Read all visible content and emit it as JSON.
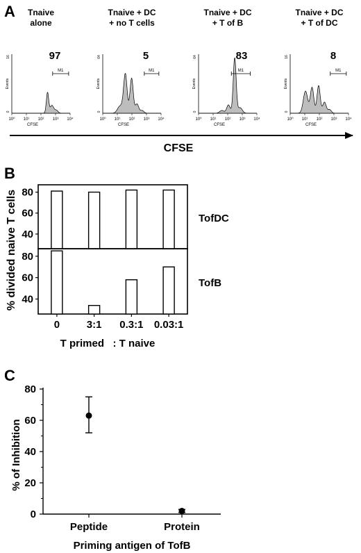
{
  "panel_labels": {
    "a": "A",
    "b": "B",
    "c": "C"
  },
  "chart_data": [
    {
      "panel": "A",
      "type": "area",
      "xaxis_label": "CFSE",
      "ylabel_small": "Events",
      "xlabel_small": "CFSE",
      "x_ticks": [
        "10⁰",
        "10¹",
        "10²",
        "10³",
        "10⁴"
      ],
      "xlim_log10": [
        0,
        4
      ],
      "gate_label": "M1",
      "fill_color": "#bdbdbd",
      "histograms": [
        {
          "title_lines": [
            "Tnaive",
            "alone"
          ],
          "percent": "97",
          "ymax": "16",
          "ymax_val": 16,
          "gate_log10": [
            2.8,
            3.9
          ],
          "peaks": [
            {
              "x": 2.45,
              "h": 5.6,
              "w": 0.08
            },
            {
              "x": 2.75,
              "h": 2.1,
              "w": 0.12
            },
            {
              "x": 3.05,
              "h": 0.8,
              "w": 0.12
            }
          ]
        },
        {
          "title_lines": [
            "Tnaive + DC",
            "+  no T cells"
          ],
          "percent": "5",
          "ymax": "64",
          "ymax_val": 64,
          "gate_log10": [
            2.85,
            3.85
          ],
          "peaks": [
            {
              "x": 1.2,
              "h": 8,
              "w": 0.18
            },
            {
              "x": 1.55,
              "h": 42,
              "w": 0.12
            },
            {
              "x": 1.98,
              "h": 38,
              "w": 0.11
            },
            {
              "x": 2.35,
              "h": 10,
              "w": 0.12
            },
            {
              "x": 2.7,
              "h": 3,
              "w": 0.12
            }
          ]
        },
        {
          "title_lines": [
            "Tnaive + DC",
            "+  T of B"
          ],
          "percent": "83",
          "ymax": "64",
          "ymax_val": 64,
          "gate_log10": [
            2.25,
            3.55
          ],
          "peaks": [
            {
              "x": 1.6,
              "h": 3,
              "w": 0.15
            },
            {
              "x": 2.05,
              "h": 9,
              "w": 0.12
            },
            {
              "x": 2.48,
              "h": 60,
              "w": 0.1
            },
            {
              "x": 2.85,
              "h": 6,
              "w": 0.15
            }
          ]
        },
        {
          "title_lines": [
            "Tnaive + DC",
            "+  T of DC"
          ],
          "percent": "8",
          "ymax": "16",
          "ymax_val": 16,
          "gate_log10": [
            2.75,
            3.85
          ],
          "peaks": [
            {
              "x": 1.05,
              "h": 6,
              "w": 0.15
            },
            {
              "x": 1.5,
              "h": 7,
              "w": 0.12
            },
            {
              "x": 1.95,
              "h": 7.5,
              "w": 0.11
            },
            {
              "x": 2.35,
              "h": 3,
              "w": 0.12
            },
            {
              "x": 2.7,
              "h": 1,
              "w": 0.12
            }
          ]
        }
      ]
    },
    {
      "panel": "B",
      "type": "bar",
      "categories": [
        "0",
        "3:1",
        "0.3:1",
        "0.03:1"
      ],
      "xlabel": "T primed   : T naive",
      "ylabel": "% divided naive T cells",
      "ylim": [
        26,
        87
      ],
      "yticks": [
        40,
        60,
        80
      ],
      "series": [
        {
          "name": "TofDC",
          "values": [
            81,
            80,
            82,
            82
          ]
        },
        {
          "name": "TofB",
          "values": [
            85,
            34,
            58,
            70
          ]
        }
      ]
    },
    {
      "panel": "C",
      "type": "scatter",
      "categories": [
        "Peptide",
        "Protein"
      ],
      "values": [
        63,
        2
      ],
      "error_low": [
        52,
        1
      ],
      "error_high": [
        75,
        3
      ],
      "ylabel": "% of Inhibition",
      "xlabel": "Priming antigen of TofB",
      "ylim": [
        0,
        80
      ],
      "yticks": [
        0,
        20,
        40,
        60,
        80
      ]
    }
  ]
}
